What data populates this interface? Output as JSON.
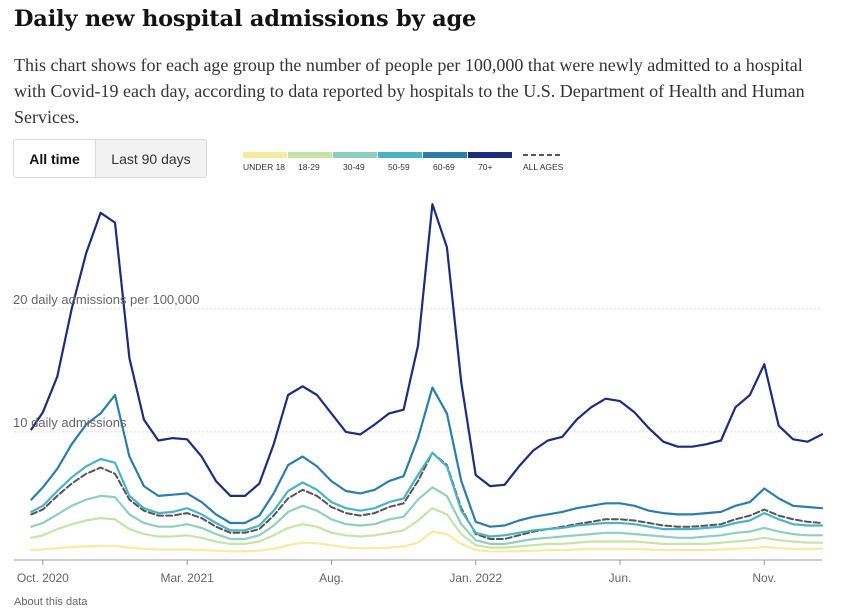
{
  "title": "Daily new hospital admissions by age",
  "description": "This chart shows for each age group the number of people per 100,000 that were newly admitted to a hospital with Covid-19 each day, according to data reported by hospitals to the U.S. Department of Health and Human Services.",
  "toggle": {
    "all_time": "All time",
    "last_90": "Last 90 days"
  },
  "about_link": "About this data",
  "colors": {
    "under18": "#f7eba0",
    "age18_29": "#c5e5a8",
    "age30_49": "#8fd0bd",
    "age50_59": "#4db3c4",
    "age60_69": "#2b7eaa",
    "age70plus": "#1d2c7c",
    "all_ages": "#555555",
    "grid": "#dddddd",
    "axis_text": "#666666"
  },
  "chart_data": {
    "type": "line",
    "title": "Daily new hospital admissions by age",
    "ylabel": "daily admissions per 100,000",
    "y_gridlines": [
      {
        "value": 20,
        "label": "20 daily admissions per 100,000"
      },
      {
        "value": 10,
        "label": "10 daily admissions"
      }
    ],
    "xlim": [
      0,
      28
    ],
    "ylim": [
      0,
      29
    ],
    "x_ticks": [
      {
        "x": 1,
        "label": "Oct. 2020"
      },
      {
        "x": 6,
        "label": "Mar. 2021"
      },
      {
        "x": 11,
        "label": "Aug."
      },
      {
        "x": 16,
        "label": "Jan. 2022"
      },
      {
        "x": 21,
        "label": "Jun."
      },
      {
        "x": 26,
        "label": "Nov."
      }
    ],
    "legend": [
      "UNDER 18",
      "18-29",
      "30-49",
      "50-59",
      "60-69",
      "70+",
      "ALL AGES"
    ],
    "x": [
      0.6,
      1.0,
      1.5,
      2.0,
      2.5,
      3.0,
      3.5,
      4.0,
      4.5,
      5.0,
      5.5,
      6.0,
      6.5,
      7.0,
      7.5,
      8.0,
      8.5,
      9.0,
      9.5,
      10.0,
      10.5,
      11.0,
      11.5,
      12.0,
      12.5,
      13.0,
      13.5,
      14.0,
      14.5,
      15.0,
      15.5,
      16.0,
      16.5,
      17.0,
      17.5,
      18.0,
      18.5,
      19.0,
      19.5,
      20.0,
      20.5,
      21.0,
      21.5,
      22.0,
      22.5,
      23.0,
      23.5,
      24.0,
      24.5,
      25.0,
      25.5,
      26.0,
      26.5,
      27.0,
      27.5,
      28.0
    ],
    "series": [
      {
        "name": "70+",
        "color_key": "age70plus",
        "values": [
          10.2,
          11.6,
          14.5,
          20,
          24.5,
          27.8,
          27,
          16,
          11,
          9.3,
          9.5,
          9.4,
          8,
          6,
          4.8,
          4.8,
          5.8,
          9,
          13,
          13.7,
          13,
          11.5,
          10,
          9.8,
          10.6,
          11.5,
          11.8,
          17,
          28.5,
          25,
          14,
          6.5,
          5.6,
          5.7,
          7.2,
          8.5,
          9.3,
          9.6,
          11,
          12,
          12.7,
          12.5,
          11.6,
          10.3,
          9.2,
          8.8,
          8.8,
          9,
          9.3,
          12,
          13,
          15.5,
          10.5,
          9.4,
          9.2,
          9.8
        ]
      },
      {
        "name": "60-69",
        "color_key": "age60_69",
        "values": [
          4.5,
          5.5,
          7,
          9,
          10.6,
          11.5,
          13,
          8,
          5.6,
          4.8,
          4.9,
          5,
          4.3,
          3.3,
          2.6,
          2.6,
          3.2,
          5,
          7.3,
          8,
          7.2,
          6,
          5.2,
          5,
          5.3,
          6,
          6.4,
          9.5,
          13.6,
          11.5,
          6,
          2.7,
          2.3,
          2.4,
          2.8,
          3.1,
          3.3,
          3.5,
          3.8,
          4,
          4.2,
          4.2,
          4,
          3.6,
          3.4,
          3.3,
          3.3,
          3.4,
          3.5,
          4,
          4.3,
          5.4,
          4.6,
          4,
          3.9,
          3.8
        ]
      },
      {
        "name": "50-59",
        "color_key": "age50_59",
        "values": [
          3.5,
          4,
          5.2,
          6.3,
          7.2,
          7.8,
          7.5,
          4.8,
          3.8,
          3.4,
          3.5,
          3.8,
          3.3,
          2.6,
          2,
          2,
          2.4,
          3.6,
          5.2,
          5.9,
          5.3,
          4.3,
          3.8,
          3.6,
          3.8,
          4.3,
          4.6,
          6.5,
          8.3,
          7.2,
          3.6,
          1.8,
          1.5,
          1.6,
          1.8,
          2,
          2.1,
          2.2,
          2.4,
          2.5,
          2.6,
          2.6,
          2.5,
          2.3,
          2.1,
          2.1,
          2.1,
          2.2,
          2.3,
          2.6,
          2.8,
          3.4,
          2.9,
          2.5,
          2.4,
          2.4
        ]
      },
      {
        "name": "ALL AGES",
        "color_key": "all_ages",
        "dashed": true,
        "values": [
          3.3,
          3.7,
          4.8,
          5.8,
          6.6,
          7.1,
          6.6,
          4.5,
          3.6,
          3.2,
          3.2,
          3.4,
          3,
          2.3,
          1.8,
          1.8,
          2.1,
          3.2,
          4.6,
          5.3,
          4.8,
          3.9,
          3.4,
          3.2,
          3.4,
          3.9,
          4.2,
          6,
          8.3,
          7.3,
          3.8,
          1.7,
          1.3,
          1.3,
          1.6,
          1.9,
          2.1,
          2.3,
          2.5,
          2.7,
          2.9,
          2.9,
          2.8,
          2.6,
          2.4,
          2.3,
          2.3,
          2.4,
          2.5,
          2.9,
          3.2,
          3.7,
          3.2,
          2.9,
          2.7,
          2.6
        ]
      },
      {
        "name": "30-49",
        "color_key": "age30_49",
        "values": [
          2.3,
          2.6,
          3.3,
          4,
          4.5,
          4.8,
          4.7,
          3.3,
          2.6,
          2.3,
          2.3,
          2.5,
          2.2,
          1.7,
          1.3,
          1.3,
          1.6,
          2.4,
          3.5,
          4,
          3.6,
          2.9,
          2.5,
          2.4,
          2.5,
          2.9,
          3.1,
          4.5,
          5.5,
          4.8,
          2.5,
          1.2,
          0.9,
          0.9,
          1.1,
          1.3,
          1.4,
          1.5,
          1.6,
          1.7,
          1.8,
          1.8,
          1.7,
          1.6,
          1.5,
          1.4,
          1.4,
          1.5,
          1.6,
          1.8,
          1.9,
          2.2,
          1.9,
          1.7,
          1.6,
          1.6
        ]
      },
      {
        "name": "18-29",
        "color_key": "age18_29",
        "values": [
          1.4,
          1.6,
          2.1,
          2.5,
          2.8,
          3,
          2.9,
          2.1,
          1.7,
          1.5,
          1.5,
          1.6,
          1.4,
          1.1,
          0.9,
          0.9,
          1.1,
          1.6,
          2.2,
          2.5,
          2.3,
          1.8,
          1.6,
          1.5,
          1.6,
          1.8,
          2,
          2.8,
          3.8,
          3.3,
          1.7,
          0.8,
          0.6,
          0.6,
          0.7,
          0.8,
          0.9,
          0.9,
          1,
          1.1,
          1.1,
          1.1,
          1.1,
          1,
          0.9,
          0.9,
          0.9,
          0.9,
          1,
          1.1,
          1.2,
          1.4,
          1.2,
          1.1,
          1,
          1
        ]
      },
      {
        "name": "UNDER 18",
        "color_key": "under18",
        "values": [
          0.4,
          0.45,
          0.55,
          0.65,
          0.7,
          0.75,
          0.75,
          0.6,
          0.5,
          0.45,
          0.45,
          0.45,
          0.4,
          0.35,
          0.3,
          0.3,
          0.35,
          0.5,
          0.8,
          1,
          0.95,
          0.8,
          0.6,
          0.55,
          0.55,
          0.6,
          0.7,
          1,
          1.9,
          1.7,
          0.9,
          0.4,
          0.3,
          0.3,
          0.3,
          0.35,
          0.4,
          0.4,
          0.45,
          0.5,
          0.5,
          0.5,
          0.5,
          0.45,
          0.4,
          0.4,
          0.4,
          0.4,
          0.45,
          0.5,
          0.55,
          0.65,
          0.55,
          0.5,
          0.5,
          0.5
        ]
      }
    ]
  }
}
